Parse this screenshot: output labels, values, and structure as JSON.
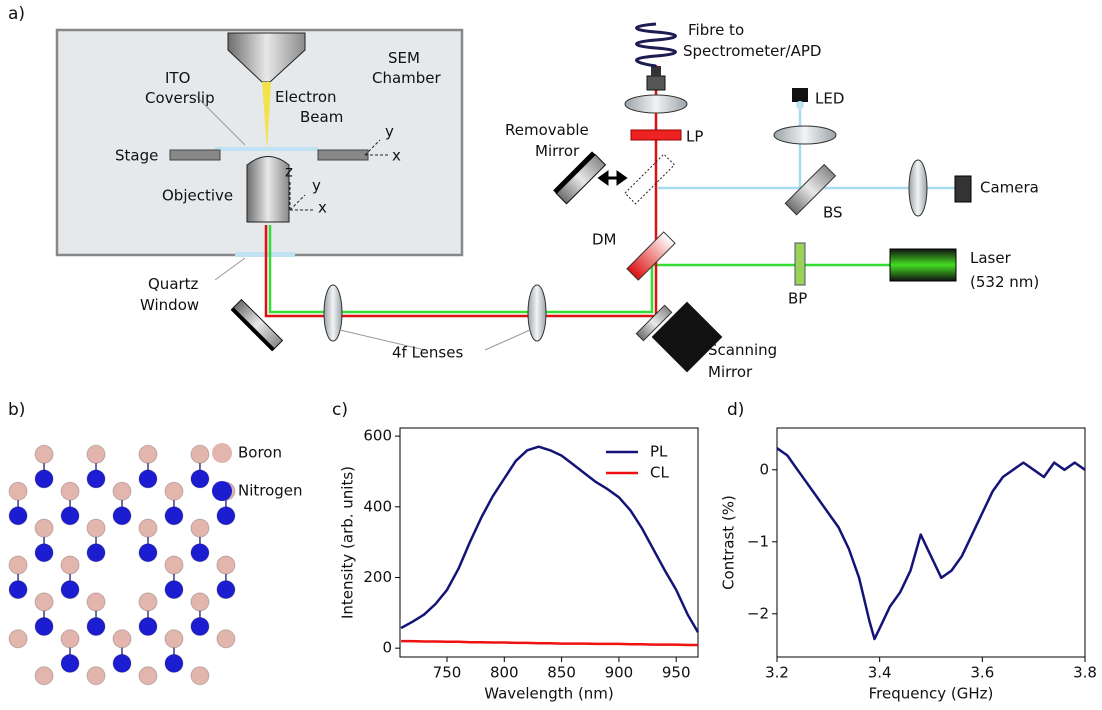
{
  "panel_labels": [
    "a)",
    "b)",
    "c)",
    "d)"
  ],
  "diagram": {
    "sem_chamber": [
      "SEM",
      "Chamber"
    ],
    "ito_coverslip": [
      "ITO",
      "Coverslip"
    ],
    "electron_beam": [
      "Electron",
      "Beam"
    ],
    "stage": "Stage",
    "objective": "Objective",
    "stage_axes": [
      "y",
      "x"
    ],
    "objective_axes": [
      "z",
      "y",
      "x"
    ],
    "quartz_window": [
      "Quartz",
      "Window"
    ],
    "fibre": [
      "Fibre to",
      "Spectrometer/APD"
    ],
    "led": "LED",
    "lp": "LP",
    "removable_mirror": [
      "Removable",
      "Mirror"
    ],
    "dm": "DM",
    "bs": "BS",
    "camera": "Camera",
    "laser": [
      "Laser",
      "(532 nm)"
    ],
    "bp": "BP",
    "lenses_4f": "4f Lenses",
    "scanning_mirror": [
      "Scanning",
      "Mirror"
    ]
  },
  "lattice": {
    "legend": [
      "Boron",
      "Nitrogen"
    ],
    "colors": [
      "#e2b5ad",
      "#1c1cd0"
    ]
  },
  "chart_data": [
    {
      "type": "line",
      "x": [
        710,
        720,
        730,
        740,
        750,
        760,
        770,
        780,
        790,
        800,
        810,
        820,
        830,
        840,
        850,
        860,
        870,
        880,
        890,
        900,
        910,
        920,
        930,
        940,
        950,
        960,
        969
      ],
      "series": [
        {
          "name": "PL",
          "color": "#141478",
          "values": [
            57,
            75,
            95,
            125,
            165,
            225,
            300,
            370,
            430,
            480,
            530,
            560,
            570,
            560,
            545,
            520,
            495,
            470,
            450,
            427,
            390,
            340,
            280,
            220,
            165,
            95,
            45
          ]
        },
        {
          "name": "CL",
          "color": "#ee1111",
          "values": [
            20,
            20,
            19,
            19,
            18,
            18,
            17,
            17,
            16,
            16,
            15,
            15,
            14,
            14,
            13,
            13,
            13,
            12,
            12,
            12,
            11,
            11,
            10,
            10,
            10,
            9,
            9
          ]
        }
      ],
      "xlabel": "Wavelength (nm)",
      "ylabel": "Intensity (arb. units)",
      "xlim": [
        709,
        969
      ],
      "ylim": [
        -25,
        623
      ],
      "xticks": [
        750,
        800,
        850,
        900,
        950
      ],
      "yticks": [
        0,
        200,
        400,
        600
      ],
      "legend": "upper right"
    },
    {
      "type": "line",
      "x": [
        3.2,
        3.22,
        3.24,
        3.26,
        3.28,
        3.3,
        3.32,
        3.34,
        3.36,
        3.38,
        3.39,
        3.4,
        3.42,
        3.44,
        3.46,
        3.48,
        3.5,
        3.52,
        3.54,
        3.56,
        3.58,
        3.6,
        3.62,
        3.64,
        3.66,
        3.68,
        3.7,
        3.72,
        3.74,
        3.76,
        3.78,
        3.8
      ],
      "values": [
        0.3,
        0.2,
        0.0,
        -0.2,
        -0.4,
        -0.6,
        -0.8,
        -1.1,
        -1.5,
        -2.1,
        -2.35,
        -2.2,
        -1.9,
        -1.7,
        -1.4,
        -0.9,
        -1.2,
        -1.5,
        -1.4,
        -1.2,
        -0.9,
        -0.6,
        -0.3,
        -0.1,
        0.0,
        0.1,
        0.0,
        -0.1,
        0.1,
        0.0,
        0.1,
        0.0
      ],
      "color": "#141478",
      "xlabel": "Frequency (GHz)",
      "ylabel": "Contrast (%)",
      "xlim": [
        3.2,
        3.8
      ],
      "ylim": [
        -2.6,
        0.58
      ],
      "xticks": [
        3.2,
        3.4,
        3.6,
        3.8
      ],
      "yticks": [
        {
          "value": -2,
          "label": "−2"
        },
        {
          "value": -1,
          "label": "−1"
        },
        0
      ]
    }
  ]
}
